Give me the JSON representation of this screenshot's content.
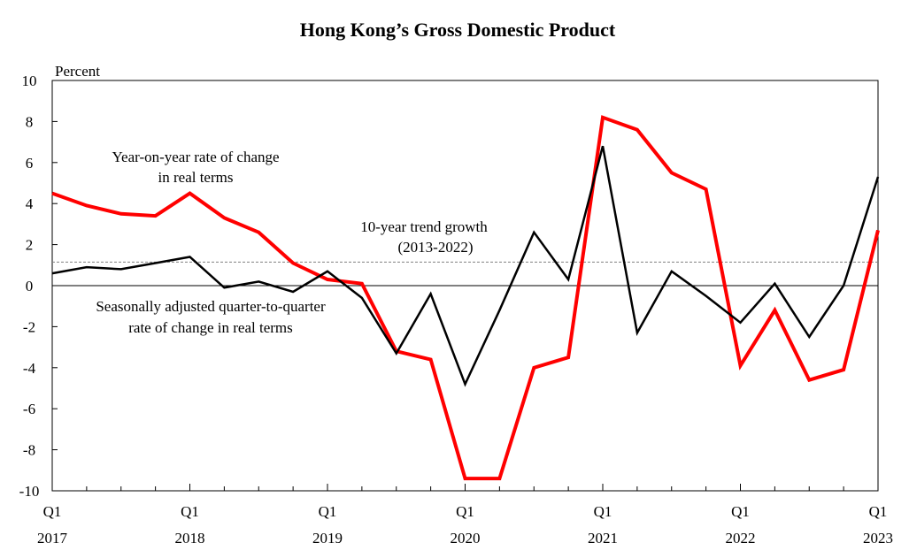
{
  "chart_data": {
    "type": "line",
    "title": "Hong Kong’s Gross Domestic Product",
    "ylabel": "Percent",
    "xlabel": "",
    "ylim": [
      -10,
      10
    ],
    "y_ticks": [
      "10",
      "8",
      "6",
      "4",
      "2",
      "0",
      "-2",
      "-4",
      "-6",
      "-8",
      "-10"
    ],
    "y_tick_values": [
      10,
      8,
      6,
      4,
      2,
      0,
      -2,
      -4,
      -6,
      -8,
      -10
    ],
    "x_labels": [
      {
        "quarter": "Q1",
        "year": "2017"
      },
      {
        "quarter": "Q1",
        "year": "2018"
      },
      {
        "quarter": "Q1",
        "year": "2019"
      },
      {
        "quarter": "Q1",
        "year": "2020"
      },
      {
        "quarter": "Q1",
        "year": "2021"
      },
      {
        "quarter": "Q1",
        "year": "2022"
      },
      {
        "quarter": "Q1",
        "year": "2023"
      }
    ],
    "categories": [
      "2017 Q1",
      "2017 Q2",
      "2017 Q3",
      "2017 Q4",
      "2018 Q1",
      "2018 Q2",
      "2018 Q3",
      "2018 Q4",
      "2019 Q1",
      "2019 Q2",
      "2019 Q3",
      "2019 Q4",
      "2020 Q1",
      "2020 Q2",
      "2020 Q3",
      "2020 Q4",
      "2021 Q1",
      "2021 Q2",
      "2021 Q3",
      "2021 Q4",
      "2022 Q1",
      "2022 Q2",
      "2022 Q3",
      "2022 Q4",
      "2023 Q1"
    ],
    "series": [
      {
        "name": "Year-on-year rate of change in real terms",
        "color": "#ff0000",
        "values": [
          4.5,
          3.9,
          3.5,
          3.4,
          4.5,
          3.3,
          2.6,
          1.1,
          0.3,
          0.1,
          -3.2,
          -3.6,
          -9.4,
          -9.4,
          -4.0,
          -3.5,
          8.2,
          7.6,
          5.5,
          4.7,
          -3.9,
          -1.2,
          -4.6,
          -4.1,
          2.7
        ]
      },
      {
        "name": "Seasonally adjusted quarter-to-quarter rate of change in real terms",
        "color": "#000000",
        "values": [
          0.6,
          0.9,
          0.8,
          1.1,
          1.4,
          -0.1,
          0.2,
          -0.3,
          0.7,
          -0.6,
          -3.3,
          -0.4,
          -4.8,
          -1.2,
          2.6,
          0.3,
          6.8,
          -2.3,
          0.7,
          -0.5,
          -1.8,
          0.1,
          -2.5,
          0.0,
          5.3
        ]
      }
    ],
    "trend": {
      "label_line1": "10-year trend growth",
      "label_line2": "(2013-2022)",
      "value": 1.15,
      "color": "#808080"
    },
    "annotations": {
      "yoy_line1": "Year-on-year rate of change",
      "yoy_line2": "in real terms",
      "qoq_line1": "Seasonally adjusted quarter-to-quarter",
      "qoq_line2": "rate of change in real terms"
    },
    "grid": false,
    "legend": "none"
  }
}
